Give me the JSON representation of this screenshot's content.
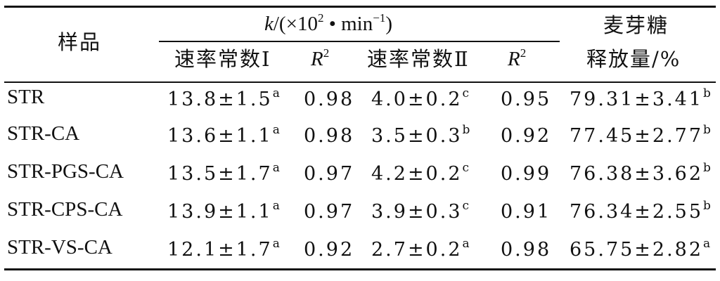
{
  "table": {
    "header": {
      "sample": "样品",
      "k_group_symbol": "k",
      "k_group_prefix": "/(×10",
      "k_group_exp": "2",
      "k_group_unit": " • min",
      "k_group_unit_exp": "−1",
      "k_group_suffix": ")",
      "rate1": "速率常数Ⅰ",
      "r2_symbol": "R",
      "r2_exp": "2",
      "rate2": "速率常数Ⅱ",
      "maltose_line1": "麦芽糖",
      "maltose_line2": "释放量/%"
    },
    "rows": [
      {
        "sample": "STR",
        "rate1": "13.8±1.5",
        "rate1_sig": "a",
        "r2a": "0.98",
        "rate2": "4.0±0.2",
        "rate2_sig": "c",
        "r2b": "0.95",
        "maltose": "79.31±3.41",
        "maltose_sig": "b"
      },
      {
        "sample": "STR-CA",
        "rate1": "13.6±1.1",
        "rate1_sig": "a",
        "r2a": "0.98",
        "rate2": "3.5±0.3",
        "rate2_sig": "b",
        "r2b": "0.92",
        "maltose": "77.45±2.77",
        "maltose_sig": "b"
      },
      {
        "sample": "STR-PGS-CA",
        "rate1": "13.5±1.7",
        "rate1_sig": "a",
        "r2a": "0.97",
        "rate2": "4.2±0.2",
        "rate2_sig": "c",
        "r2b": "0.99",
        "maltose": "76.38±3.62",
        "maltose_sig": "b"
      },
      {
        "sample": "STR-CPS-CA",
        "rate1": "13.9±1.1",
        "rate1_sig": "a",
        "r2a": "0.97",
        "rate2": "3.9±0.3",
        "rate2_sig": "c",
        "r2b": "0.91",
        "maltose": "76.34±2.55",
        "maltose_sig": "b"
      },
      {
        "sample": "STR-VS-CA",
        "rate1": "12.1±1.7",
        "rate1_sig": "a",
        "r2a": "0.92",
        "rate2": "2.7±0.2",
        "rate2_sig": "a",
        "r2b": "0.98",
        "maltose": "65.75±2.82",
        "maltose_sig": "a"
      }
    ]
  }
}
